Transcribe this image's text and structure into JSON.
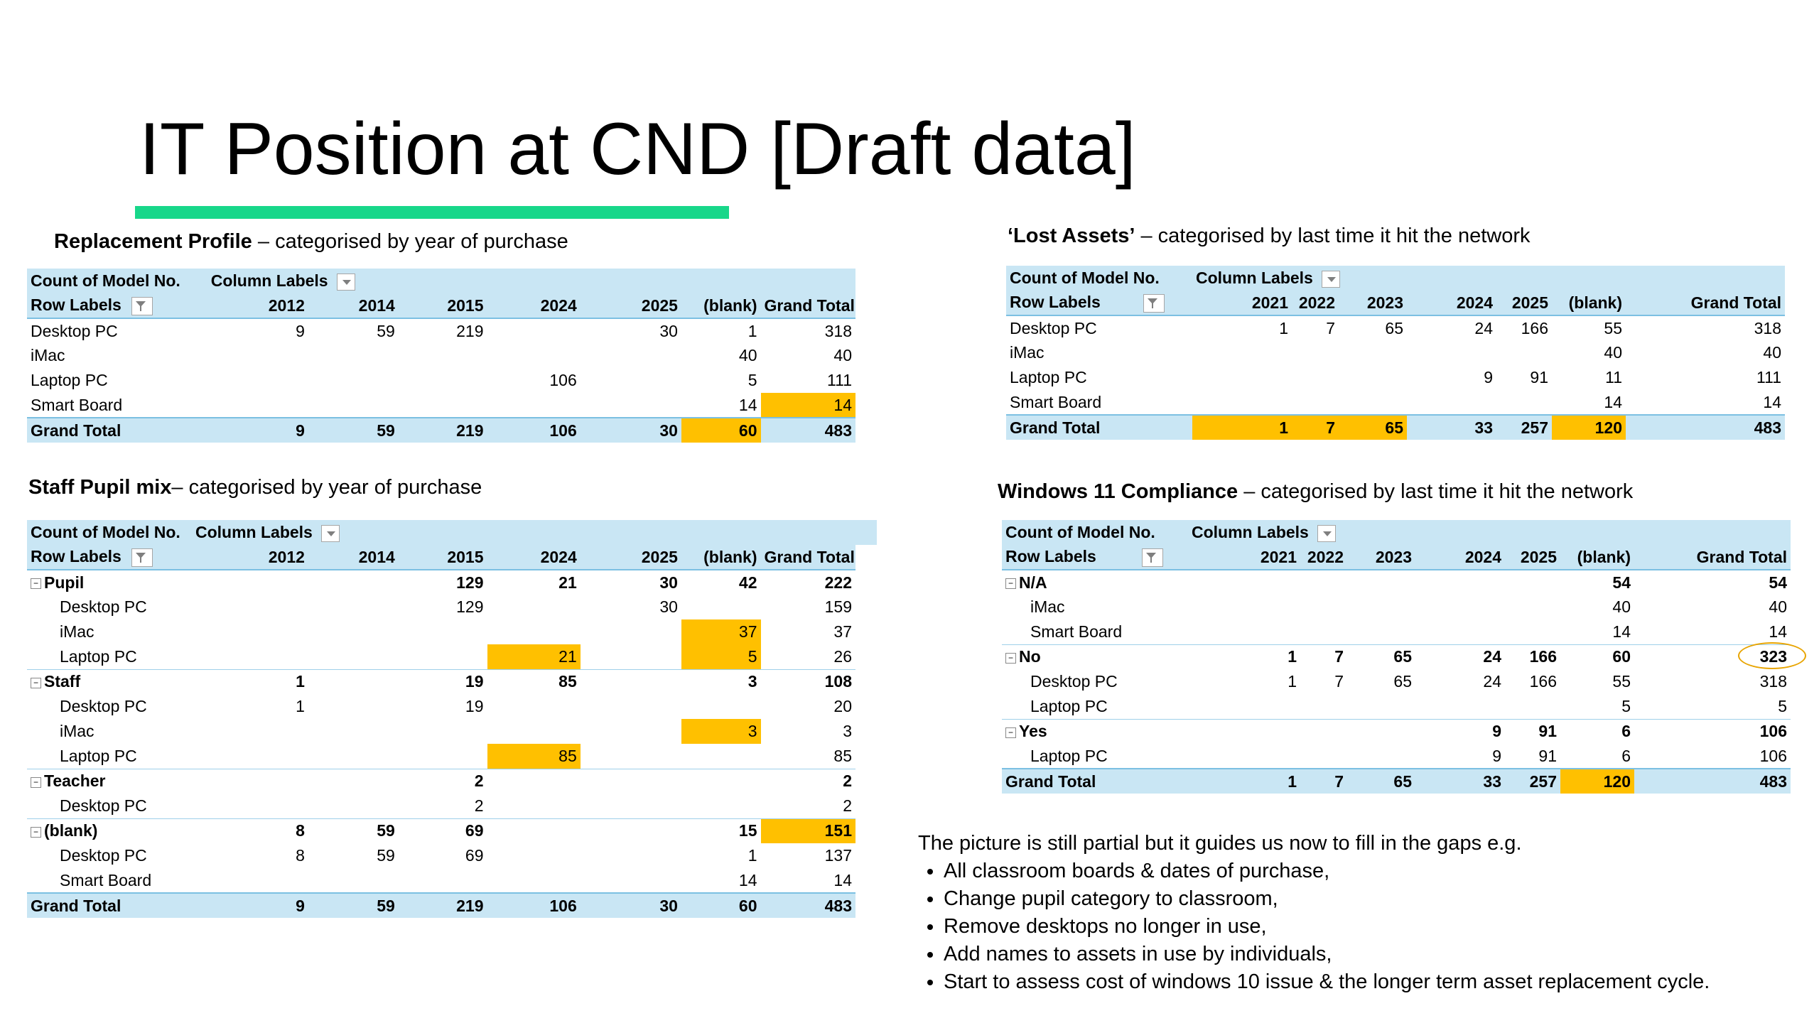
{
  "title": "IT Position at CND [Draft data]",
  "pivot_labels": {
    "count": "Count of Model No.",
    "column_labels": "Column Labels",
    "row_labels": "Row Labels",
    "grand_total": "Grand Total"
  },
  "replacement": {
    "caption_bold": "Replacement Profile",
    "caption_rest": " – categorised by year of purchase",
    "columns": [
      "2012",
      "2014",
      "2015",
      "2024",
      "2025",
      "(blank)",
      "Grand Total"
    ],
    "rows": [
      {
        "label": "Desktop PC",
        "v": [
          "9",
          "59",
          "219",
          "",
          "30",
          "1",
          "318"
        ]
      },
      {
        "label": "iMac",
        "v": [
          "",
          "",
          "",
          "",
          "",
          "40",
          "40"
        ]
      },
      {
        "label": "Laptop PC",
        "v": [
          "",
          "",
          "",
          "106",
          "",
          "5",
          "111"
        ]
      },
      {
        "label": "Smart Board",
        "v": [
          "",
          "",
          "",
          "",
          "",
          "14",
          "14"
        ]
      }
    ],
    "total": [
      "9",
      "59",
      "219",
      "106",
      "30",
      "60",
      "483"
    ]
  },
  "staff": {
    "caption_bold": "Staff Pupil mix",
    "caption_rest": "– categorised by year of purchase",
    "columns": [
      "2012",
      "2014",
      "2015",
      "2024",
      "2025",
      "(blank)",
      "Grand Total"
    ],
    "groups": [
      {
        "label": "Pupil",
        "v": [
          "",
          "",
          "129",
          "21",
          "30",
          "42",
          "222"
        ],
        "items": [
          {
            "label": "Desktop PC",
            "v": [
              "",
              "",
              "129",
              "",
              "30",
              "",
              "159"
            ]
          },
          {
            "label": "iMac",
            "v": [
              "",
              "",
              "",
              "",
              "",
              "37",
              "37"
            ]
          },
          {
            "label": "Laptop PC",
            "v": [
              "",
              "",
              "",
              "21",
              "",
              "5",
              "26"
            ]
          }
        ]
      },
      {
        "label": "Staff",
        "v": [
          "1",
          "",
          "19",
          "85",
          "",
          "3",
          "108"
        ],
        "items": [
          {
            "label": "Desktop PC",
            "v": [
              "1",
              "",
              "19",
              "",
              "",
              "",
              "20"
            ]
          },
          {
            "label": "iMac",
            "v": [
              "",
              "",
              "",
              "",
              "",
              "3",
              "3"
            ]
          },
          {
            "label": "Laptop PC",
            "v": [
              "",
              "",
              "",
              "85",
              "",
              "",
              "85"
            ]
          }
        ]
      },
      {
        "label": "Teacher",
        "v": [
          "",
          "",
          "2",
          "",
          "",
          "",
          "2"
        ],
        "items": [
          {
            "label": "Desktop PC",
            "v": [
              "",
              "",
              "2",
              "",
              "",
              "",
              "2"
            ]
          }
        ]
      },
      {
        "label": "(blank)",
        "v": [
          "8",
          "59",
          "69",
          "",
          "",
          "15",
          "151"
        ],
        "items": [
          {
            "label": "Desktop PC",
            "v": [
              "8",
              "59",
              "69",
              "",
              "",
              "1",
              "137"
            ]
          },
          {
            "label": "Smart Board",
            "v": [
              "",
              "",
              "",
              "",
              "",
              "14",
              "14"
            ]
          }
        ]
      }
    ],
    "total": [
      "9",
      "59",
      "219",
      "106",
      "30",
      "60",
      "483"
    ]
  },
  "lost": {
    "caption_bold": "‘Lost Assets’",
    "caption_rest": " – categorised by last time it hit the network",
    "columns": [
      "2021",
      "2022",
      "2023",
      "2024",
      "2025",
      "(blank)",
      "Grand Total"
    ],
    "rows": [
      {
        "label": "Desktop PC",
        "v": [
          "1",
          "7",
          "65",
          "24",
          "166",
          "55",
          "318"
        ]
      },
      {
        "label": "iMac",
        "v": [
          "",
          "",
          "",
          "",
          "",
          "40",
          "40"
        ]
      },
      {
        "label": "Laptop PC",
        "v": [
          "",
          "",
          "",
          "9",
          "91",
          "11",
          "111"
        ]
      },
      {
        "label": "Smart Board",
        "v": [
          "",
          "",
          "",
          "",
          "",
          "14",
          "14"
        ]
      }
    ],
    "total": [
      "1",
      "7",
      "65",
      "33",
      "257",
      "120",
      "483"
    ]
  },
  "win11": {
    "caption_bold": "Windows 11 Compliance",
    "caption_rest": " – categorised by last time it hit the network",
    "columns": [
      "2021",
      "2022",
      "2023",
      "2024",
      "2025",
      "(blank)",
      "Grand Total"
    ],
    "groups": [
      {
        "label": "N/A",
        "v": [
          "",
          "",
          "",
          "",
          "",
          "54",
          "54"
        ],
        "items": [
          {
            "label": "iMac",
            "v": [
              "",
              "",
              "",
              "",
              "",
              "40",
              "40"
            ]
          },
          {
            "label": "Smart Board",
            "v": [
              "",
              "",
              "",
              "",
              "",
              "14",
              "14"
            ]
          }
        ]
      },
      {
        "label": "No",
        "v": [
          "1",
          "7",
          "65",
          "24",
          "166",
          "60",
          "323"
        ],
        "items": [
          {
            "label": "Desktop PC",
            "v": [
              "1",
              "7",
              "65",
              "24",
              "166",
              "55",
              "318"
            ]
          },
          {
            "label": "Laptop PC",
            "v": [
              "",
              "",
              "",
              "",
              "",
              "5",
              "5"
            ]
          }
        ]
      },
      {
        "label": "Yes",
        "v": [
          "",
          "",
          "",
          "9",
          "91",
          "6",
          "106"
        ],
        "items": [
          {
            "label": "Laptop PC",
            "v": [
              "",
              "",
              "",
              "9",
              "91",
              "6",
              "106"
            ]
          }
        ]
      }
    ],
    "total": [
      "1",
      "7",
      "65",
      "33",
      "257",
      "120",
      "483"
    ]
  },
  "notes": {
    "intro": "The picture is still partial but it guides us now to fill in the gaps e.g.",
    "items": [
      "All classroom boards & dates of purchase,",
      "Change pupil category to classroom,",
      "Remove desktops no longer in use,",
      "Add names to assets in use by individuals,",
      "Start to assess cost of windows 10 issue & the longer term asset replacement cycle."
    ]
  },
  "highlight_color": "#ffc000",
  "header_color": "#c9e6f4",
  "accent_color": "#18d78a"
}
